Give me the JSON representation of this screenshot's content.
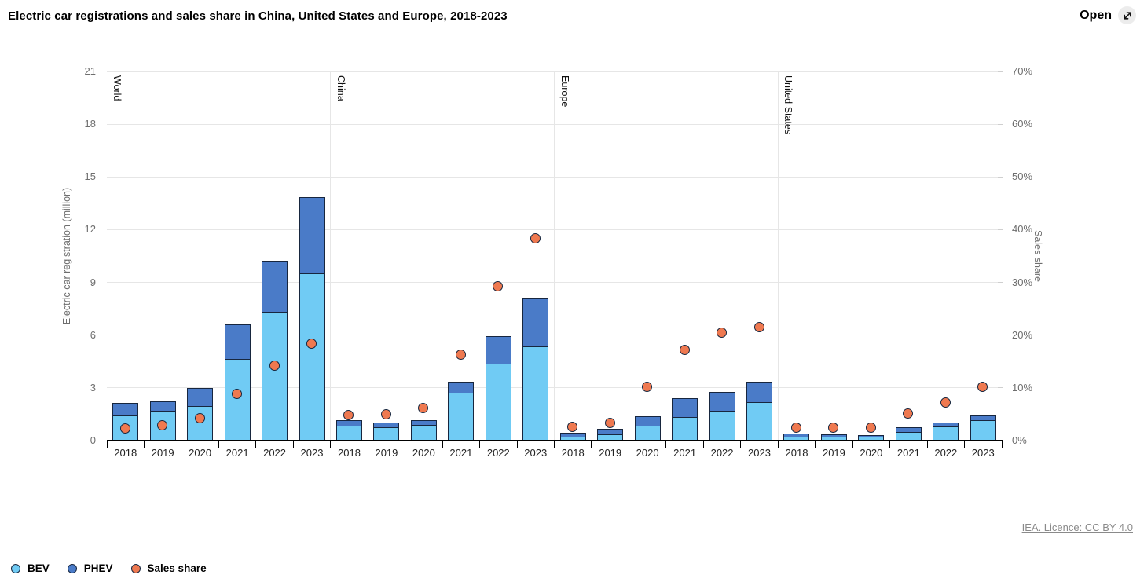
{
  "header": {
    "title": "Electric car registrations and sales share in China, United States and Europe, 2018-2023",
    "open_label": "Open"
  },
  "footer": {
    "licence": "IEA. Licence: CC BY 4.0"
  },
  "legend": [
    {
      "label": "BEV",
      "color": "#70CBF4"
    },
    {
      "label": "PHEV",
      "color": "#4A7BC8"
    },
    {
      "label": "Sales share",
      "color": "#EF7950"
    }
  ],
  "chart_data": {
    "type": "bar",
    "subtype": "stacked-bars-with-sales-share-dots",
    "title": "Electric car registrations and sales share in China, United States and Europe, 2018-2023",
    "grid": true,
    "legend_position": "bottom-left",
    "years": [
      "2018",
      "2019",
      "2020",
      "2021",
      "2022",
      "2023"
    ],
    "y_left": {
      "label": "Electric car registration (million)",
      "min": 0,
      "max": 21,
      "ticks": [
        0,
        3,
        6,
        9,
        12,
        15,
        18,
        21
      ]
    },
    "y_right": {
      "label": "Sales share",
      "min": 0,
      "max": 70,
      "ticks": [
        "0%",
        "10%",
        "20%",
        "30%",
        "40%",
        "50%",
        "60%",
        "70%"
      ]
    },
    "series_names": [
      "BEV",
      "PHEV",
      "Sales share"
    ],
    "panels": [
      {
        "region": "World",
        "bev": [
          1.45,
          1.7,
          2.0,
          4.65,
          7.35,
          9.55
        ],
        "phev": [
          0.7,
          0.55,
          1.0,
          1.95,
          2.9,
          4.3
        ],
        "sales_share_pct": [
          2.3,
          2.8,
          4.2,
          8.8,
          14.2,
          18.3
        ]
      },
      {
        "region": "China",
        "bev": [
          0.85,
          0.8,
          0.9,
          2.75,
          4.4,
          5.4
        ],
        "phev": [
          0.3,
          0.25,
          0.25,
          0.6,
          1.55,
          2.7
        ],
        "sales_share_pct": [
          4.8,
          4.9,
          6.1,
          16.3,
          29.2,
          38.3
        ]
      },
      {
        "region": "Europe",
        "bev": [
          0.25,
          0.4,
          0.85,
          1.35,
          1.7,
          2.2
        ],
        "phev": [
          0.2,
          0.25,
          0.55,
          1.05,
          1.05,
          1.15
        ],
        "sales_share_pct": [
          2.5,
          3.3,
          10.1,
          17.2,
          20.4,
          21.4
        ]
      },
      {
        "region": "United States",
        "bev": [
          0.25,
          0.24,
          0.24,
          0.5,
          0.82,
          1.2
        ],
        "phev": [
          0.13,
          0.1,
          0.09,
          0.28,
          0.2,
          0.22
        ],
        "sales_share_pct": [
          2.4,
          2.4,
          2.4,
          5.1,
          7.2,
          10.2
        ]
      }
    ],
    "colors": {
      "bev": "#70CBF4",
      "phev": "#4A7BC8",
      "dot": "#EF7950",
      "outline": "#17263E",
      "grid": "#E6E6E6",
      "axis": "#000000"
    }
  }
}
